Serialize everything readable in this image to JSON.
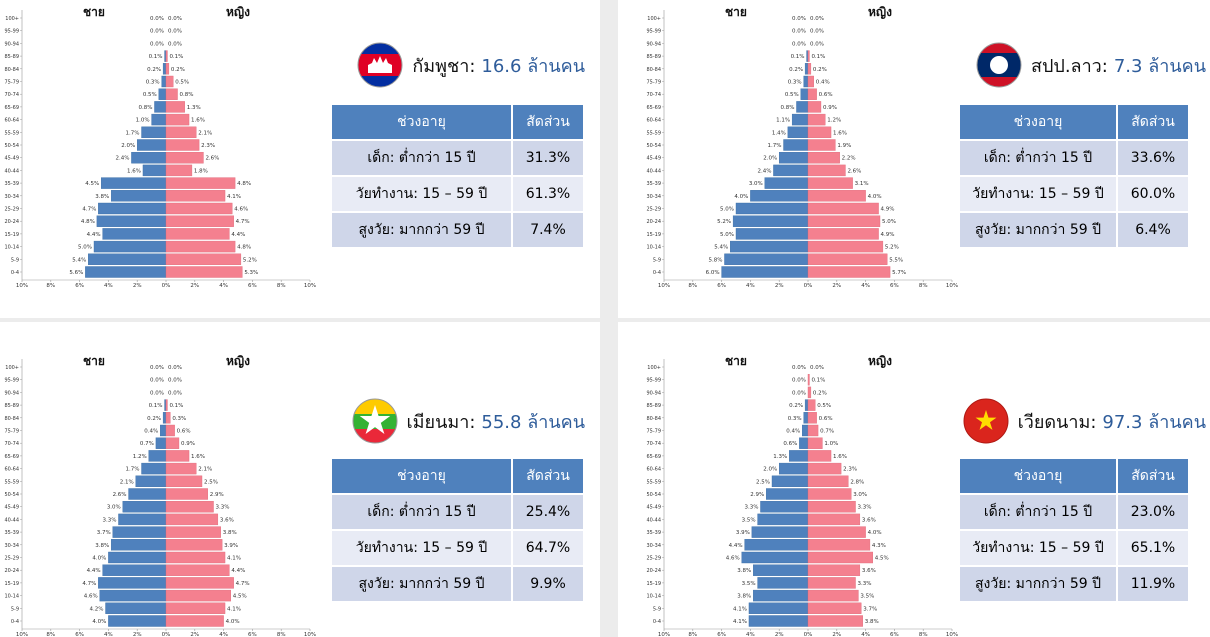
{
  "chart_data": [
    {
      "type": "pyramid",
      "country": "กัมพูชา:",
      "population": "16.6 ล้านคน",
      "categories": [
        "100+",
        "95-99",
        "90-94",
        "85-89",
        "80-84",
        "75-79",
        "70-74",
        "65-69",
        "60-64",
        "55-59",
        "50-54",
        "45-49",
        "40-44",
        "35-39",
        "30-34",
        "25-29",
        "20-24",
        "15-19",
        "10-14",
        "5-9",
        "0-4"
      ],
      "series": [
        {
          "name": "ชาย",
          "color": "#4f81bd",
          "values": [
            0.0,
            0.0,
            0.0,
            0.1,
            0.2,
            0.3,
            0.5,
            0.8,
            1.0,
            1.7,
            2.0,
            2.4,
            1.6,
            4.5,
            3.8,
            4.7,
            4.8,
            4.4,
            5.0,
            5.4,
            5.6
          ],
          "value_labels": [
            "0.0%",
            "0.0%",
            "0.0%",
            "0.1%",
            "0.2%",
            "0.3%",
            "0.5%",
            "0.8%",
            "1.0%",
            "1.7%",
            "2.0%",
            "2.4%",
            "1.6%",
            "4.5%",
            "3.8%",
            "4.7%",
            "4.8%",
            "4.4%",
            "5.0%",
            "5.4%",
            "5.6%"
          ]
        },
        {
          "name": "หญิง",
          "color": "#f4808f",
          "values": [
            0.0,
            0.0,
            0.0,
            0.1,
            0.2,
            0.5,
            0.8,
            1.3,
            1.6,
            2.1,
            2.3,
            2.6,
            1.8,
            4.8,
            4.1,
            4.6,
            4.7,
            4.4,
            4.8,
            5.2,
            5.3
          ],
          "value_labels": [
            "0.0%",
            "0.0%",
            "0.0%",
            "0.1%",
            "0.2%",
            "0.5%",
            "0.8%",
            "1.3%",
            "1.6%",
            "2.1%",
            "2.3%",
            "2.6%",
            "1.8%",
            "4.8%",
            "4.1%",
            "4.6%",
            "4.7%",
            "4.4%",
            "4.8%",
            "5.2%",
            "5.3%"
          ]
        }
      ],
      "xlim": [
        -10,
        10
      ],
      "xticks": [
        {
          "value": -10,
          "label": "10%"
        },
        {
          "value": -8,
          "label": "8%"
        },
        {
          "value": -6,
          "label": "6%"
        },
        {
          "value": -4,
          "label": "4%"
        },
        {
          "value": -2,
          "label": "2%"
        },
        {
          "value": 0,
          "label": "0%"
        },
        {
          "value": 2,
          "label": "2%"
        },
        {
          "value": 4,
          "label": "4%"
        },
        {
          "value": 6,
          "label": "6%"
        },
        {
          "value": 8,
          "label": "8%"
        },
        {
          "value": 10,
          "label": "10%"
        }
      ],
      "table": {
        "header": [
          "ช่วงอายุ",
          "สัดส่วน"
        ],
        "rows": [
          [
            "เด็ก: ต่ำกว่า 15 ปี",
            "31.3%"
          ],
          [
            "วัยทำงาน: 15 – 59 ปี",
            "61.3%"
          ],
          [
            "สูงวัย: มากกว่า 59 ปี",
            "7.4%"
          ]
        ]
      }
    },
    {
      "type": "pyramid",
      "country": "สปป.ลาว:",
      "population": "7.3 ล้านคน",
      "categories": [
        "100+",
        "95-99",
        "90-94",
        "85-89",
        "80-84",
        "75-79",
        "70-74",
        "65-69",
        "60-64",
        "55-59",
        "50-54",
        "45-49",
        "40-44",
        "35-39",
        "30-34",
        "25-29",
        "20-24",
        "15-19",
        "10-14",
        "5-9",
        "0-4"
      ],
      "series": [
        {
          "name": "ชาย",
          "color": "#4f81bd",
          "values": [
            0.0,
            0.0,
            0.0,
            0.1,
            0.2,
            0.3,
            0.5,
            0.8,
            1.1,
            1.4,
            1.7,
            2.0,
            2.4,
            3.0,
            4.0,
            5.0,
            5.2,
            5.0,
            5.4,
            5.8,
            6.0
          ],
          "value_labels": [
            "0.0%",
            "0.0%",
            "0.0%",
            "0.1%",
            "0.2%",
            "0.3%",
            "0.5%",
            "0.8%",
            "1.1%",
            "1.4%",
            "1.7%",
            "2.0%",
            "2.4%",
            "3.0%",
            "4.0%",
            "5.0%",
            "5.2%",
            "5.0%",
            "5.4%",
            "5.8%",
            "6.0%"
          ]
        },
        {
          "name": "หญิง",
          "color": "#f4808f",
          "values": [
            0.0,
            0.0,
            0.0,
            0.1,
            0.2,
            0.4,
            0.6,
            0.9,
            1.2,
            1.6,
            1.9,
            2.2,
            2.6,
            3.1,
            4.0,
            4.9,
            5.0,
            4.9,
            5.2,
            5.5,
            5.7
          ],
          "value_labels": [
            "0.0%",
            "0.0%",
            "0.0%",
            "0.1%",
            "0.2%",
            "0.4%",
            "0.6%",
            "0.9%",
            "1.2%",
            "1.6%",
            "1.9%",
            "2.2%",
            "2.6%",
            "3.1%",
            "4.0%",
            "4.9%",
            "5.0%",
            "4.9%",
            "5.2%",
            "5.5%",
            "5.7%"
          ]
        }
      ],
      "xlim": [
        -10,
        10
      ],
      "xticks": [
        {
          "value": -10,
          "label": "10%"
        },
        {
          "value": -8,
          "label": "8%"
        },
        {
          "value": -6,
          "label": "6%"
        },
        {
          "value": -4,
          "label": "4%"
        },
        {
          "value": -2,
          "label": "2%"
        },
        {
          "value": 0,
          "label": "0%"
        },
        {
          "value": 2,
          "label": "2%"
        },
        {
          "value": 4,
          "label": "4%"
        },
        {
          "value": 6,
          "label": "6%"
        },
        {
          "value": 8,
          "label": "8%"
        },
        {
          "value": 10,
          "label": "10%"
        }
      ],
      "table": {
        "header": [
          "ช่วงอายุ",
          "สัดส่วน"
        ],
        "rows": [
          [
            "เด็ก: ต่ำกว่า 15 ปี",
            "33.6%"
          ],
          [
            "วัยทำงาน: 15 – 59 ปี",
            "60.0%"
          ],
          [
            "สูงวัย: มากกว่า 59 ปี",
            "6.4%"
          ]
        ]
      }
    },
    {
      "type": "pyramid",
      "country": "เมียนมา:",
      "population": "55.8 ล้านคน",
      "categories": [
        "100+",
        "95-99",
        "90-94",
        "85-89",
        "80-84",
        "75-79",
        "70-74",
        "65-69",
        "60-64",
        "55-59",
        "50-54",
        "45-49",
        "40-44",
        "35-39",
        "30-34",
        "25-29",
        "20-24",
        "15-19",
        "10-14",
        "5-9",
        "0-4"
      ],
      "series": [
        {
          "name": "ชาย",
          "color": "#4f81bd",
          "values": [
            0.0,
            0.0,
            0.0,
            0.1,
            0.2,
            0.4,
            0.7,
            1.2,
            1.7,
            2.1,
            2.6,
            3.0,
            3.3,
            3.7,
            3.8,
            4.0,
            4.4,
            4.7,
            4.6,
            4.2,
            4.0
          ],
          "value_labels": [
            "0.0%",
            "0.0%",
            "0.0%",
            "0.1%",
            "0.2%",
            "0.4%",
            "0.7%",
            "1.2%",
            "1.7%",
            "2.1%",
            "2.6%",
            "3.0%",
            "3.3%",
            "3.7%",
            "3.8%",
            "4.0%",
            "4.4%",
            "4.7%",
            "4.6%",
            "4.2%",
            "4.0%"
          ]
        },
        {
          "name": "หญิง",
          "color": "#f4808f",
          "values": [
            0.0,
            0.0,
            0.0,
            0.1,
            0.3,
            0.6,
            0.9,
            1.6,
            2.1,
            2.5,
            2.9,
            3.3,
            3.6,
            3.8,
            3.9,
            4.1,
            4.4,
            4.7,
            4.5,
            4.1,
            4.0
          ],
          "value_labels": [
            "0.0%",
            "0.0%",
            "0.0%",
            "0.1%",
            "0.3%",
            "0.6%",
            "0.9%",
            "1.6%",
            "2.1%",
            "2.5%",
            "2.9%",
            "3.3%",
            "3.6%",
            "3.8%",
            "3.9%",
            "4.1%",
            "4.4%",
            "4.7%",
            "4.5%",
            "4.1%",
            "4.0%"
          ]
        }
      ],
      "xlim": [
        -10,
        10
      ],
      "xticks": [
        {
          "value": -10,
          "label": "10%"
        },
        {
          "value": -8,
          "label": "8%"
        },
        {
          "value": -6,
          "label": "6%"
        },
        {
          "value": -4,
          "label": "4%"
        },
        {
          "value": -2,
          "label": "2%"
        },
        {
          "value": 0,
          "label": "0%"
        },
        {
          "value": 2,
          "label": "2%"
        },
        {
          "value": 4,
          "label": "4%"
        },
        {
          "value": 6,
          "label": "6%"
        },
        {
          "value": 8,
          "label": "8%"
        },
        {
          "value": 10,
          "label": "10%"
        }
      ],
      "table": {
        "header": [
          "ช่วงอายุ",
          "สัดส่วน"
        ],
        "rows": [
          [
            "เด็ก: ต่ำกว่า 15 ปี",
            "25.4%"
          ],
          [
            "วัยทำงาน: 15 – 59 ปี",
            "64.7%"
          ],
          [
            "สูงวัย: มากกว่า 59 ปี",
            "9.9%"
          ]
        ]
      }
    },
    {
      "type": "pyramid",
      "country": "เวียดนาม:",
      "population": "97.3 ล้านคน",
      "categories": [
        "100+",
        "95-99",
        "90-94",
        "85-89",
        "80-84",
        "75-79",
        "70-74",
        "65-69",
        "60-64",
        "55-59",
        "50-54",
        "45-49",
        "40-44",
        "35-39",
        "30-34",
        "25-29",
        "20-24",
        "15-19",
        "10-14",
        "5-9",
        "0-4"
      ],
      "series": [
        {
          "name": "ชาย",
          "color": "#4f81bd",
          "values": [
            0.0,
            0.0,
            0.0,
            0.2,
            0.3,
            0.4,
            0.6,
            1.3,
            2.0,
            2.5,
            2.9,
            3.3,
            3.5,
            3.9,
            4.4,
            4.6,
            3.8,
            3.5,
            3.8,
            4.1,
            4.1
          ],
          "value_labels": [
            "0.0%",
            "0.0%",
            "0.0%",
            "0.2%",
            "0.3%",
            "0.4%",
            "0.6%",
            "1.3%",
            "2.0%",
            "2.5%",
            "2.9%",
            "3.3%",
            "3.5%",
            "3.9%",
            "4.4%",
            "4.6%",
            "3.8%",
            "3.5%",
            "3.8%",
            "4.1%",
            "4.1%"
          ]
        },
        {
          "name": "หญิง",
          "color": "#f4808f",
          "values": [
            0.0,
            0.1,
            0.2,
            0.5,
            0.6,
            0.7,
            1.0,
            1.6,
            2.3,
            2.8,
            3.0,
            3.3,
            3.6,
            4.0,
            4.3,
            4.5,
            3.6,
            3.3,
            3.5,
            3.7,
            3.8
          ],
          "value_labels": [
            "0.0%",
            "0.1%",
            "0.2%",
            "0.5%",
            "0.6%",
            "0.7%",
            "1.0%",
            "1.6%",
            "2.3%",
            "2.8%",
            "3.0%",
            "3.3%",
            "3.6%",
            "4.0%",
            "4.3%",
            "4.5%",
            "3.6%",
            "3.3%",
            "3.5%",
            "3.7%",
            "3.8%"
          ]
        }
      ],
      "xlim": [
        -10,
        10
      ],
      "xticks": [
        {
          "value": -10,
          "label": "10%"
        },
        {
          "value": -8,
          "label": "8%"
        },
        {
          "value": -6,
          "label": "6%"
        },
        {
          "value": -4,
          "label": "4%"
        },
        {
          "value": -2,
          "label": "2%"
        },
        {
          "value": 0,
          "label": "0%"
        },
        {
          "value": 2,
          "label": "2%"
        },
        {
          "value": 4,
          "label": "4%"
        },
        {
          "value": 6,
          "label": "6%"
        },
        {
          "value": 8,
          "label": "8%"
        },
        {
          "value": 10,
          "label": "10%"
        }
      ],
      "table": {
        "header": [
          "ช่วงอายุ",
          "สัดส่วน"
        ],
        "rows": [
          [
            "เด็ก: ต่ำกว่า 15 ปี",
            "23.0%"
          ],
          [
            "วัยทำงาน: 15 – 59 ปี",
            "65.1%"
          ],
          [
            "สูงวัย: มากกว่า 59 ปี",
            "11.9%"
          ]
        ]
      }
    }
  ]
}
